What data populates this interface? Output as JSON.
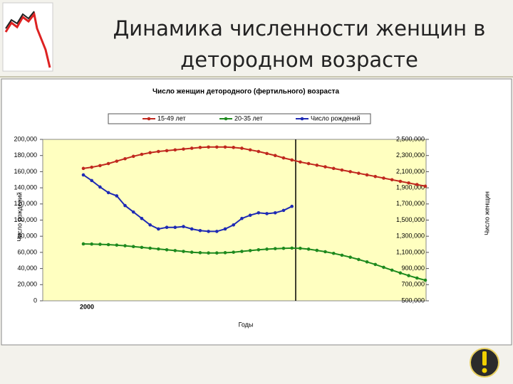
{
  "slide": {
    "title": "Динамика численности женщин в детородном возрасте"
  },
  "chart_data": {
    "type": "line",
    "title": "Число женщин детородного (фертильного) возраста",
    "x_label": "Годы",
    "y_label": "Число рождений",
    "y2_label": "Число женщин",
    "categories": [
      "2000",
      null,
      null,
      null,
      null,
      null,
      null,
      null,
      null,
      null,
      null,
      null,
      null,
      null,
      null,
      null,
      null,
      null,
      null,
      null,
      null,
      null,
      null,
      null,
      null,
      null,
      null,
      null,
      null,
      null,
      null,
      null,
      null,
      null,
      null,
      null,
      null,
      null,
      null,
      null,
      null,
      null
    ],
    "ylim": [
      0,
      200000
    ],
    "yticks": [
      0,
      {
        "value": 20000,
        "label": "20,000"
      },
      {
        "value": 40000,
        "label": "40,000"
      },
      {
        "value": 60000,
        "label": "60,000"
      },
      {
        "value": 80000,
        "label": "80,000"
      },
      {
        "value": 100000,
        "label": "100,000"
      },
      {
        "value": 120000,
        "label": "120,000"
      },
      {
        "value": 140000,
        "label": "140,000"
      },
      {
        "value": 160000,
        "label": "160,000"
      },
      {
        "value": 180000,
        "label": "180,000"
      },
      {
        "value": 200000,
        "label": "200,000"
      }
    ],
    "y2lim": [
      500000,
      2500000
    ],
    "y2ticks": [
      {
        "value": 500000,
        "label": "500,000"
      },
      {
        "value": 700000,
        "label": "700,000"
      },
      {
        "value": 900000,
        "label": "900,000"
      },
      {
        "value": 1100000,
        "label": "1,100,000"
      },
      {
        "value": 1300000,
        "label": "1,300,000"
      },
      {
        "value": 1500000,
        "label": "1,500,000"
      },
      {
        "value": 1700000,
        "label": "1,700,000"
      },
      {
        "value": 1900000,
        "label": "1,900,000"
      },
      {
        "value": 2100000,
        "label": "2,100,000"
      },
      {
        "value": 2300000,
        "label": "2,300,000"
      },
      {
        "value": 2500000,
        "label": "2,500,000"
      }
    ],
    "grid": false,
    "series": [
      {
        "name": "15-49 лет",
        "color": "#c0281e",
        "axis": "y2",
        "values": [
          2140000,
          2155000,
          2175000,
          2200000,
          2230000,
          2260000,
          2290000,
          2315000,
          2335000,
          2350000,
          2360000,
          2370000,
          2380000,
          2390000,
          2400000,
          2405000,
          2405000,
          2405000,
          2400000,
          2390000,
          2370000,
          2350000,
          2325000,
          2300000,
          2270000,
          2245000,
          2220000,
          2200000,
          2180000,
          2160000,
          2140000,
          2120000,
          2100000,
          2080000,
          2060000,
          2040000,
          2020000,
          2000000,
          1980000,
          1960000,
          1940000,
          1920000
        ]
      },
      {
        "name": "20-35 лет",
        "color": "#1e8a1e",
        "axis": "y2",
        "values": [
          1205000,
          1203000,
          1200000,
          1196000,
          1190000,
          1182000,
          1172000,
          1162000,
          1152000,
          1142000,
          1132000,
          1122000,
          1112000,
          1102000,
          1096000,
          1093000,
          1093000,
          1096000,
          1102000,
          1112000,
          1122000,
          1132000,
          1140000,
          1146000,
          1150000,
          1153000,
          1150000,
          1140000,
          1125000,
          1108000,
          1088000,
          1065000,
          1040000,
          1012000,
          982000,
          950000,
          915000,
          880000,
          845000,
          812000,
          782000,
          755000
        ]
      },
      {
        "name": "Число рождений",
        "color": "#1e2ab4",
        "values": [
          156000,
          149000,
          141000,
          134000,
          130000,
          118000,
          110000,
          102000,
          94000,
          89000,
          91000,
          91000,
          92000,
          89000,
          87000,
          86000,
          86000,
          89000,
          94000,
          102000,
          106000,
          109000,
          108000,
          109000,
          112000,
          117000,
          null,
          null,
          null,
          null,
          null,
          null,
          null,
          null,
          null,
          null,
          null,
          null,
          null,
          null,
          null,
          null
        ]
      }
    ]
  }
}
